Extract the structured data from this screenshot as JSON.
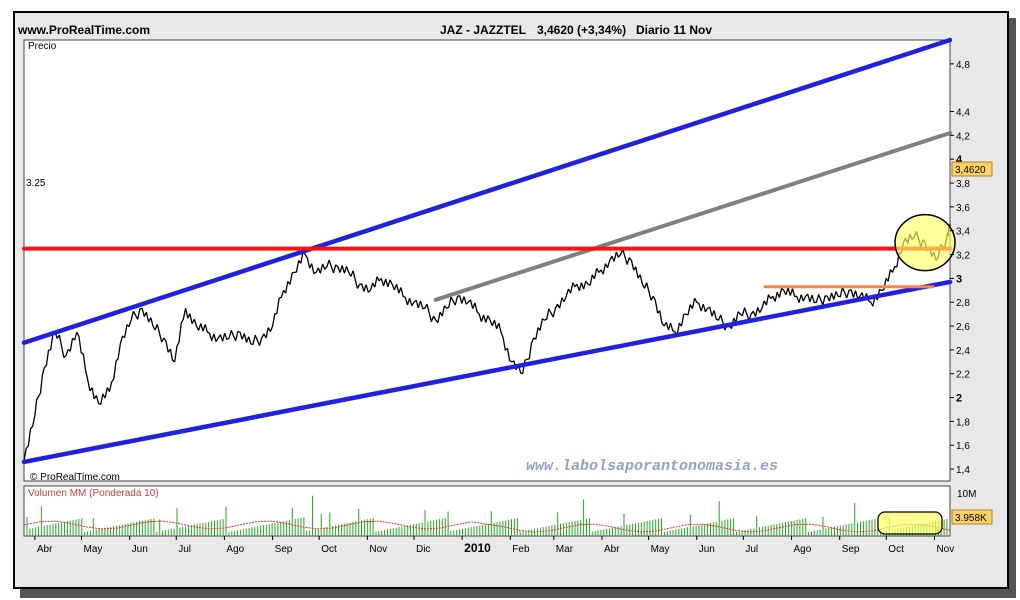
{
  "header": {
    "site": "www.ProRealTime.com",
    "instrument": "JAZ - JAZZTEL",
    "price": "3,4620 (+3,34%)",
    "period": "Diario  11 Nov"
  },
  "price_panel": {
    "label": "Precio",
    "watermark": "www.labolsaporantonomasia.es",
    "footer": "© ProRealTime.com",
    "last_price_badge": "3,4620",
    "level_label": "3.25"
  },
  "volume_panel": {
    "label": "Volumen MM (Ponderada 10)",
    "scale_label": "10M",
    "last_volume_badge": "3.958K"
  },
  "colors": {
    "channel": "#2020e0",
    "resistance": "#ff1010",
    "midline": "#808080",
    "support_short": "#ff8040",
    "volume_bar": "#22aa22",
    "volume_avg": "#e03030",
    "highlight": "#ffff66"
  },
  "chart_data": {
    "type": "line",
    "title": "JAZ - JAZZTEL",
    "xlabel": "",
    "ylabel": "Precio",
    "ylim": [
      1.3,
      5.0
    ],
    "y_ticks": [
      "1,4",
      "1,6",
      "1,8",
      "2",
      "2,2",
      "2,4",
      "2,6",
      "2,8",
      "3",
      "3,2",
      "3,4",
      "3,6",
      "3,8",
      "4",
      "4,2",
      "4,4",
      "4,8"
    ],
    "x_tick_labels": [
      "Abr",
      "May",
      "Jun",
      "Jul",
      "Ago",
      "Sep",
      "Oct",
      "Nov",
      "Dic",
      "2010",
      "Feb",
      "Mar",
      "Abr",
      "May",
      "Jun",
      "Jul",
      "Ago",
      "Sep",
      "Oct",
      "Nov"
    ],
    "series": [
      {
        "name": "",
        "x": [
          "2009-03-25",
          "2009-04-01",
          "2009-04-07",
          "2009-04-14",
          "2009-04-21",
          "2009-04-28",
          "2009-05-05",
          "2009-05-12",
          "2009-05-19",
          "2009-05-26",
          "2009-06-02",
          "2009-06-09",
          "2009-06-16",
          "2009-06-23",
          "2009-06-30",
          "2009-07-07",
          "2009-07-14",
          "2009-07-21",
          "2009-07-28",
          "2009-08-04",
          "2009-08-11",
          "2009-08-18",
          "2009-08-25",
          "2009-09-01",
          "2009-09-08",
          "2009-09-15",
          "2009-09-22",
          "2009-09-29",
          "2009-10-06",
          "2009-10-13",
          "2009-10-20",
          "2009-10-27",
          "2009-11-03",
          "2009-11-10",
          "2009-11-17",
          "2009-11-24",
          "2009-12-01",
          "2009-12-08",
          "2009-12-15",
          "2009-12-22",
          "2009-12-29",
          "2010-01-05",
          "2010-01-12",
          "2010-01-19",
          "2010-01-26",
          "2010-02-02",
          "2010-02-09",
          "2010-02-16",
          "2010-02-23",
          "2010-03-02",
          "2010-03-09",
          "2010-03-16",
          "2010-03-23",
          "2010-03-30",
          "2010-04-06",
          "2010-04-13",
          "2010-04-20",
          "2010-04-27",
          "2010-05-04",
          "2010-05-11",
          "2010-05-18",
          "2010-05-25",
          "2010-06-01",
          "2010-06-08",
          "2010-06-15",
          "2010-06-22",
          "2010-06-29",
          "2010-07-06",
          "2010-07-13",
          "2010-07-20",
          "2010-07-27",
          "2010-08-03",
          "2010-08-10",
          "2010-08-17",
          "2010-08-24",
          "2010-08-31",
          "2010-09-07",
          "2010-09-14",
          "2010-09-21",
          "2010-09-28",
          "2010-10-05",
          "2010-10-12",
          "2010-10-19",
          "2010-10-26",
          "2010-11-02",
          "2010-11-09",
          "2010-11-11"
        ],
        "y": [
          1.47,
          1.85,
          2.25,
          2.55,
          2.35,
          2.55,
          2.15,
          1.95,
          2.05,
          2.45,
          2.65,
          2.75,
          2.6,
          2.5,
          2.3,
          2.75,
          2.6,
          2.55,
          2.5,
          2.5,
          2.55,
          2.45,
          2.5,
          2.6,
          2.9,
          3.05,
          3.2,
          3.05,
          3.1,
          3.1,
          3.05,
          2.95,
          2.9,
          3.0,
          2.95,
          2.85,
          2.8,
          2.75,
          2.65,
          2.75,
          2.85,
          2.8,
          2.7,
          2.65,
          2.55,
          2.3,
          2.2,
          2.5,
          2.65,
          2.75,
          2.85,
          2.95,
          2.95,
          3.05,
          3.15,
          3.2,
          3.15,
          2.95,
          2.85,
          2.6,
          2.55,
          2.7,
          2.8,
          2.75,
          2.65,
          2.6,
          2.7,
          2.7,
          2.75,
          2.85,
          2.9,
          2.85,
          2.85,
          2.8,
          2.85,
          2.85,
          2.9,
          2.85,
          2.8,
          2.9,
          3.05,
          3.3,
          3.35,
          3.3,
          3.15,
          3.35,
          3.46
        ]
      }
    ],
    "lines": [
      {
        "kind": "channel_top",
        "from": {
          "x": "2009-03-25",
          "y": 2.46
        },
        "to": {
          "x": "2010-11-11",
          "y": 5.0
        }
      },
      {
        "kind": "channel_bottom",
        "from": {
          "x": "2009-03-25",
          "y": 1.46
        },
        "to": {
          "x": "2010-11-11",
          "y": 2.97
        }
      },
      {
        "kind": "midline",
        "from": {
          "x": "2009-12-15",
          "y": 2.82
        },
        "to": {
          "x": "2010-11-11",
          "y": 4.22
        }
      },
      {
        "kind": "resistance",
        "y": 3.25
      },
      {
        "kind": "support_short",
        "from": {
          "x": "2010-07-15",
          "y": 2.93
        },
        "to": {
          "x": "2010-10-31",
          "y": 2.93
        }
      }
    ],
    "volume": {
      "ylim": [
        0,
        10
      ],
      "unit": "M",
      "last": 3.958
    }
  }
}
